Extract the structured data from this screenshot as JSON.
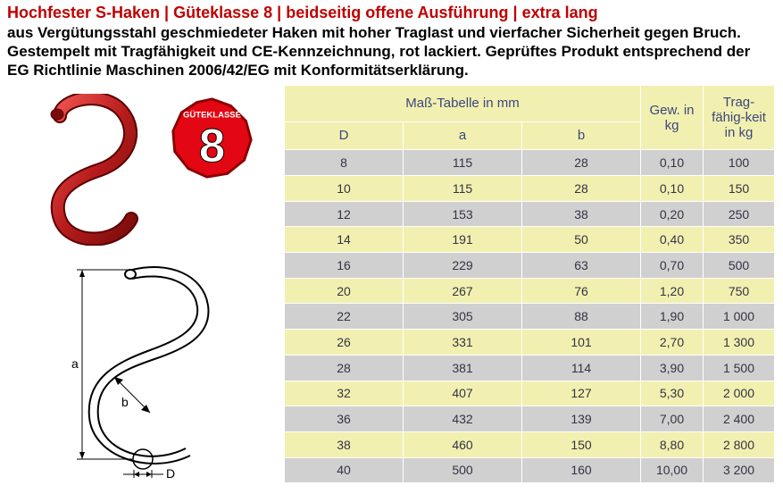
{
  "header": {
    "title": "Hochfester S-Haken | Güteklasse 8 | beidseitig offene Ausführung | extra lang",
    "description": "aus Vergütungsstahl geschmiedeter Haken mit hoher Traglast und vierfacher Sicherheit gegen Bruch. Gestempelt mit Tragfähigkeit und CE-Kennzeichnung, rot lackiert. Geprüftes Produkt entsprechend der EG Richtlinie Maschinen 2006/42/EG mit Konformitätserklärung."
  },
  "badge": {
    "top_text": "GÜTEKLASSE",
    "number": "8",
    "fill": "#e30613",
    "stroke": "#8a0000",
    "text_color": "#ffffff"
  },
  "illustration": {
    "hook_color": "#b71c1c",
    "hook_highlight": "#ef5350",
    "outline_color": "#000000",
    "dim_labels": {
      "a": "a",
      "b": "b",
      "D": "D"
    }
  },
  "table": {
    "columns": {
      "mass_header": "Maß-Tabelle in mm",
      "D": "D",
      "a": "a",
      "b": "b",
      "gew": "Gew. in kg",
      "trag": "Trag-fähig-keit in kg"
    },
    "header_bg": "#f2f0b0",
    "row_even_bg": "#d0d0d0",
    "row_odd_bg": "#f2f0b0",
    "header_text_color": "#3b467f",
    "cell_text_color": "#333344",
    "rows": [
      {
        "D": "8",
        "a": "115",
        "b": "28",
        "gew": "0,10",
        "trag": "100"
      },
      {
        "D": "10",
        "a": "115",
        "b": "28",
        "gew": "0,10",
        "trag": "150"
      },
      {
        "D": "12",
        "a": "153",
        "b": "38",
        "gew": "0,20",
        "trag": "250"
      },
      {
        "D": "14",
        "a": "191",
        "b": "50",
        "gew": "0,40",
        "trag": "350"
      },
      {
        "D": "16",
        "a": "229",
        "b": "63",
        "gew": "0,70",
        "trag": "500"
      },
      {
        "D": "20",
        "a": "267",
        "b": "76",
        "gew": "1,20",
        "trag": "750"
      },
      {
        "D": "22",
        "a": "305",
        "b": "88",
        "gew": "1,90",
        "trag": "1 000"
      },
      {
        "D": "26",
        "a": "331",
        "b": "101",
        "gew": "2,70",
        "trag": "1 300"
      },
      {
        "D": "28",
        "a": "381",
        "b": "114",
        "gew": "3,90",
        "trag": "1 500"
      },
      {
        "D": "32",
        "a": "407",
        "b": "127",
        "gew": "5,30",
        "trag": "2 000"
      },
      {
        "D": "36",
        "a": "432",
        "b": "139",
        "gew": "7,00",
        "trag": "2 400"
      },
      {
        "D": "38",
        "a": "460",
        "b": "150",
        "gew": "8,80",
        "trag": "2 800"
      },
      {
        "D": "40",
        "a": "500",
        "b": "160",
        "gew": "10,00",
        "trag": "3 200"
      }
    ]
  }
}
